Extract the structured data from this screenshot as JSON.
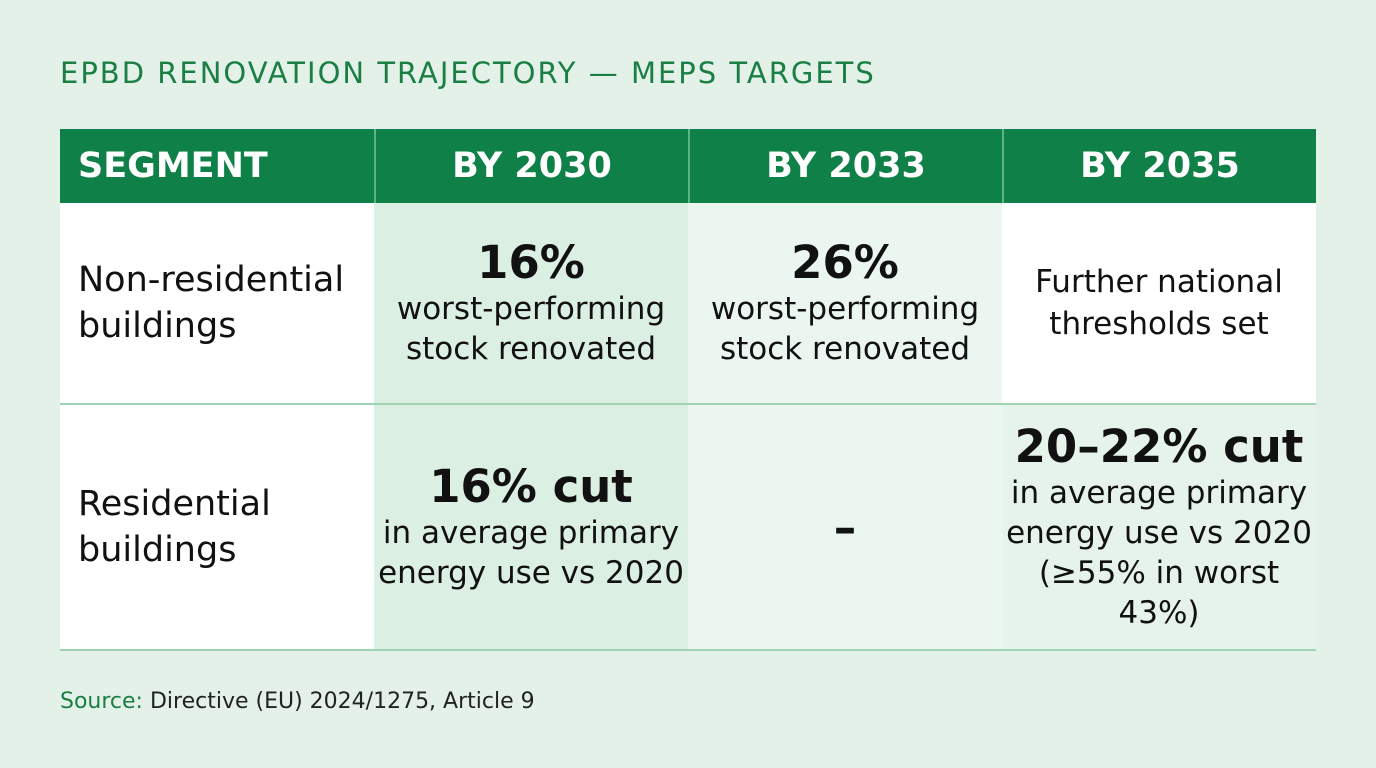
{
  "title": "EPBD RENOVATION TRAJECTORY — MEPS TARGETS",
  "table": {
    "headers": [
      "SEGMENT",
      "BY 2030",
      "BY 2033",
      "BY 2035"
    ],
    "rows": [
      {
        "segment": "Non-residential buildings",
        "by2030": {
          "value": "16%",
          "desc_line1": "worst-performing",
          "desc_line2": "stock renovated"
        },
        "by2033": {
          "value": "26%",
          "desc_line1": "worst-performing",
          "desc_line2": "stock renovated"
        },
        "by2035": {
          "note_line1": "Further national",
          "note_line2": "thresholds set"
        }
      },
      {
        "segment": "Residential buildings",
        "by2030": {
          "value": "16% cut",
          "desc_line1": "in average primary",
          "desc_line2": "energy use vs 2020"
        },
        "by2033": {
          "value": "–"
        },
        "by2035": {
          "value": "20–22% cut",
          "desc_line1": "in average primary",
          "desc_line2": "energy use vs 2020",
          "desc_line3": "(≥55% in worst 43%)"
        }
      }
    ]
  },
  "source": {
    "label": "Source:",
    "text": " Directive (EU) 2024/1275, Article 9"
  },
  "colors": {
    "accent": "#1b7f45",
    "header_bg": "#0e8048",
    "page_bg": "#e3f1e8"
  }
}
